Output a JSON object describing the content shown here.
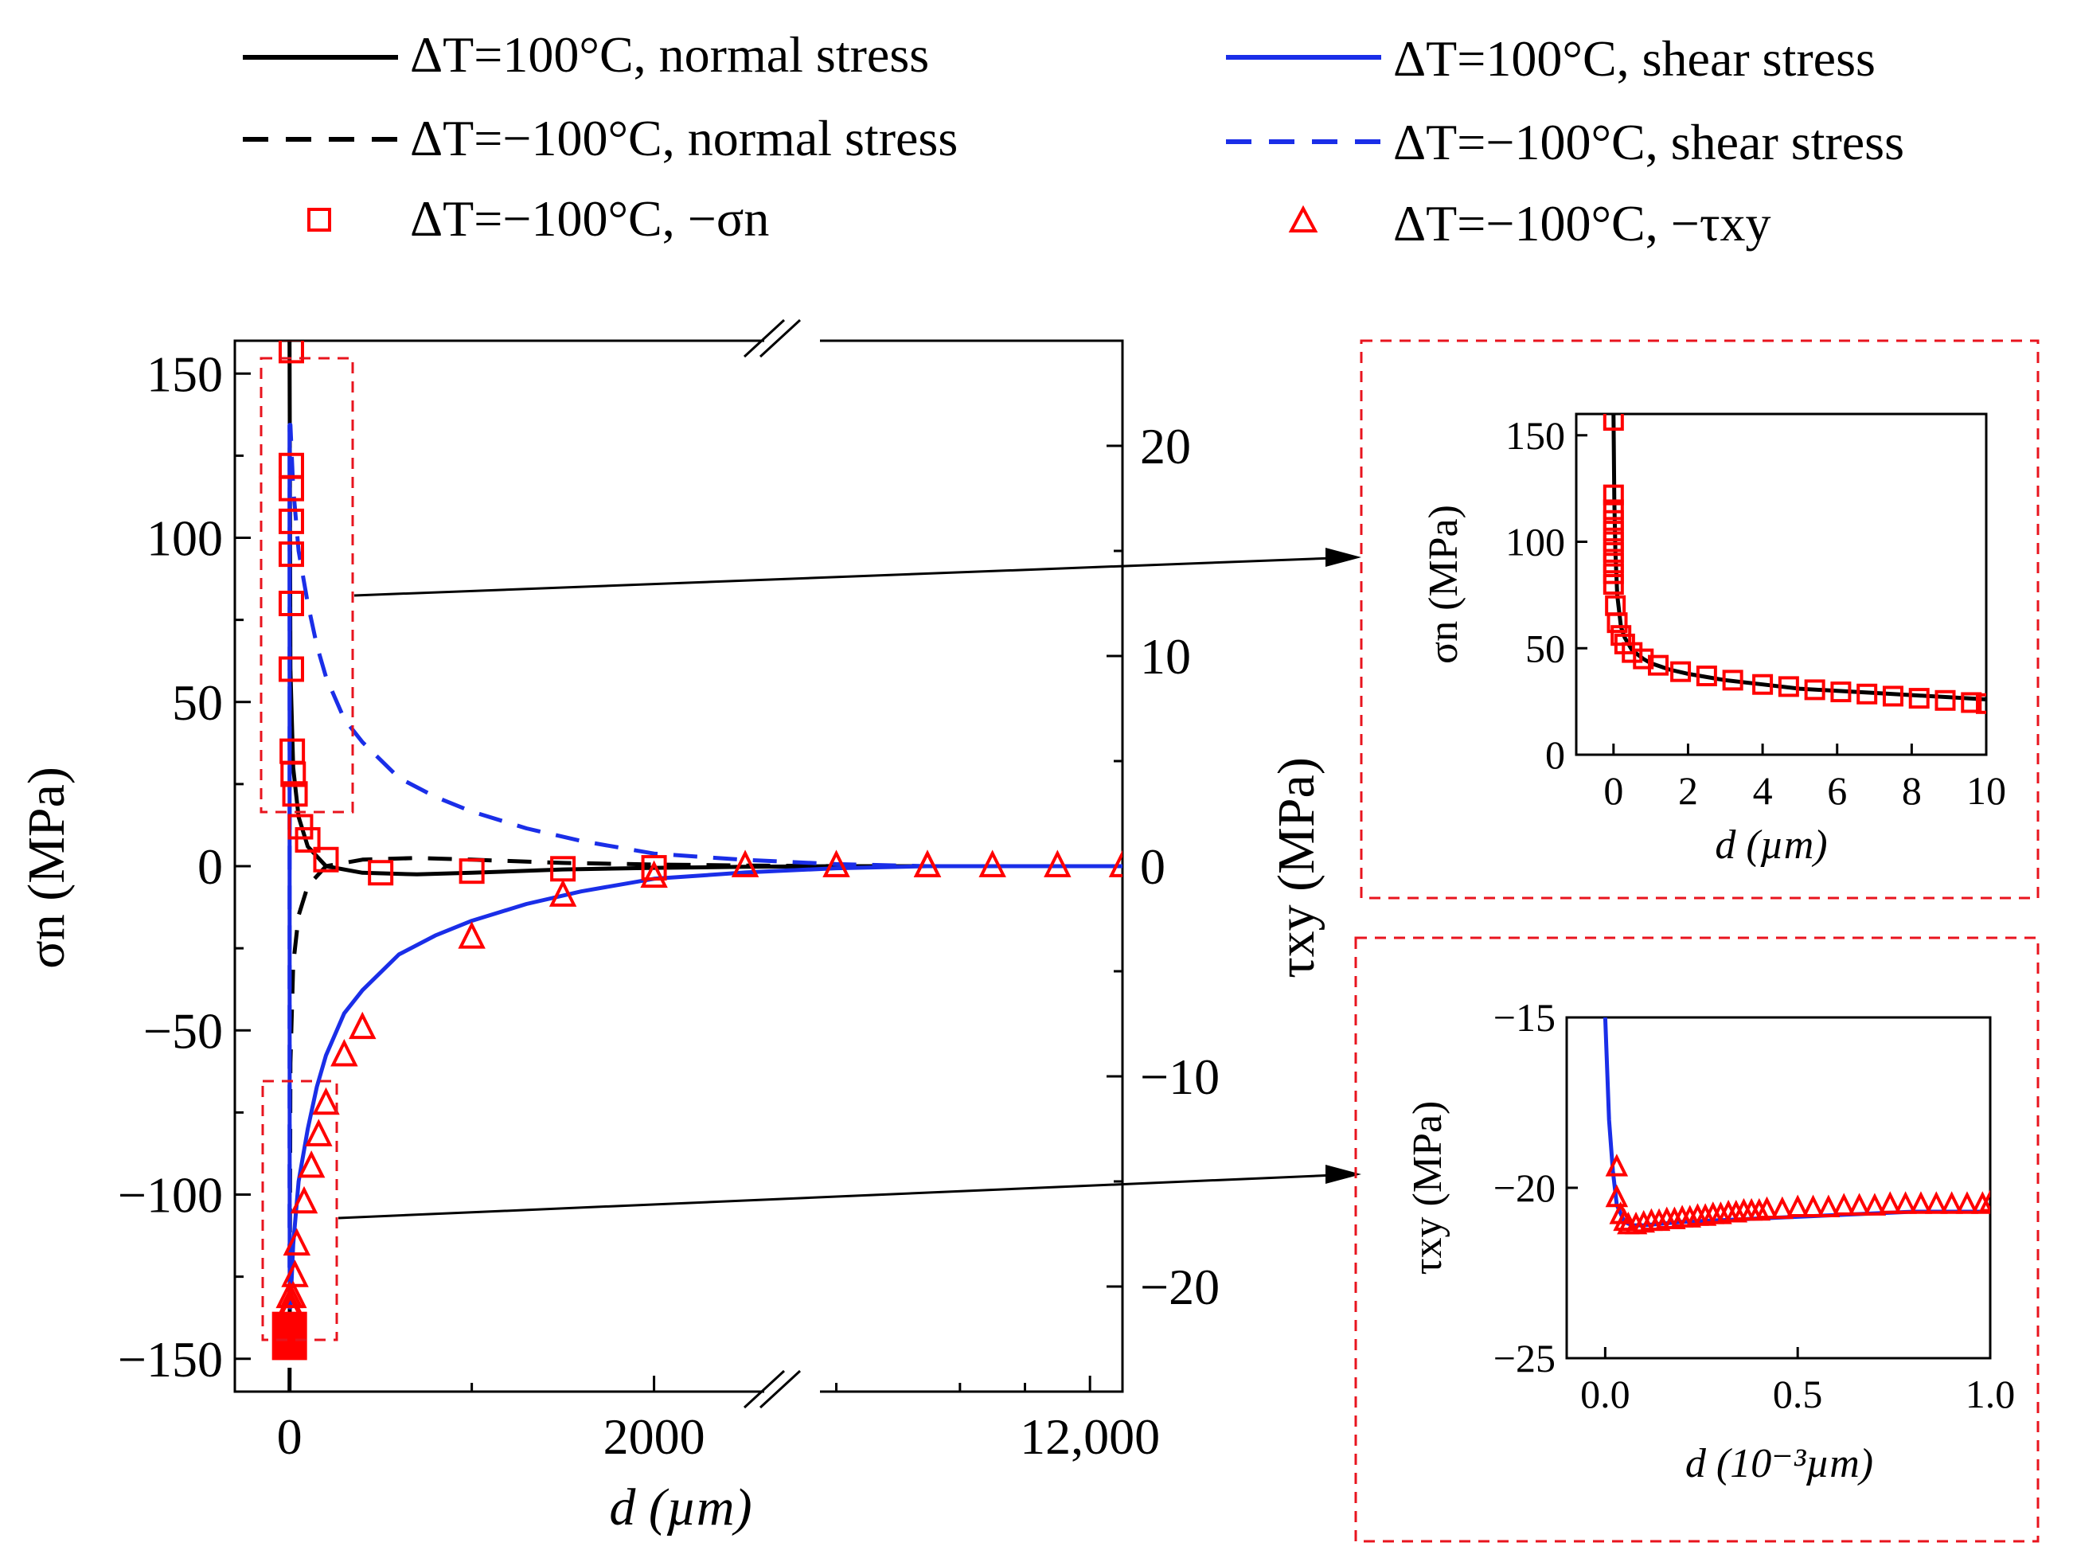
{
  "legend": {
    "solid_black": "ΔT=100°C, normal stress",
    "dash_black": "ΔT=−100°C, normal stress",
    "square_red": "ΔT=−100°C, −σn",
    "solid_blue": "ΔT=100°C, shear stress",
    "dash_blue": "ΔT=−100°C, shear stress",
    "triangle_red": "ΔT=−100°C, −τxy"
  },
  "colors": {
    "normal": "#000000",
    "shear": "#1a2ee8",
    "marker": "#ff0000",
    "zoom_box": "#e8141e"
  },
  "chart_data": [
    {
      "id": "main",
      "type": "line",
      "xlabel": "d (µm)",
      "ylabel_left": "σn (MPa)",
      "ylabel_right": "τxy (MPa)",
      "x_break": {
        "segment1": [
          -300,
          3500
        ],
        "segment2": [
          9500,
          12500
        ],
        "break_mark": "//"
      },
      "ylim_left": [
        -160,
        160
      ],
      "ylim_right": [
        -25,
        25
      ],
      "yticks_left": [
        "150",
        "100",
        "50",
        "0",
        "−50",
        "−100",
        "−150"
      ],
      "yticks_right": [
        "20",
        "10",
        "0",
        "−10",
        "−20"
      ],
      "xticks": [
        "0",
        "2000",
        "12,000"
      ],
      "series": [
        {
          "name": "ΔT=100°C, normal stress",
          "axis": "left",
          "style": "solid",
          "color": "#000000",
          "x": [
            0,
            5,
            20,
            50,
            100,
            200,
            400,
            700,
            1000,
            1500,
            2000,
            2500,
            3000,
            3500,
            9500,
            10500,
            11500,
            12500
          ],
          "y": [
            160,
            60,
            30,
            15,
            6,
            0,
            -2,
            -2.5,
            -2,
            -1,
            -0.5,
            -0.2,
            0,
            0,
            0,
            0,
            0,
            0
          ]
        },
        {
          "name": "ΔT=−100°C, normal stress",
          "axis": "left",
          "style": "dashed",
          "color": "#000000",
          "x": [
            0,
            5,
            20,
            50,
            100,
            200,
            400,
            700,
            1000,
            1500,
            2000,
            2500,
            3000,
            3500,
            9500,
            10500,
            11500,
            12500
          ],
          "y": [
            -160,
            -60,
            -30,
            -15,
            -6,
            0,
            2,
            2.5,
            2,
            1,
            0.5,
            0.2,
            0,
            0,
            0,
            0,
            0,
            0
          ]
        },
        {
          "name": "ΔT=100°C, shear stress",
          "axis": "right",
          "style": "solid",
          "color": "#1a2ee8",
          "x": [
            0,
            1,
            5,
            20,
            50,
            100,
            150,
            200,
            300,
            400,
            600,
            800,
            1000,
            1300,
            1600,
            2000,
            2500,
            3000,
            3500,
            9500,
            10500,
            11500,
            12500
          ],
          "y": [
            21,
            -21,
            -21,
            -18,
            -15,
            -12.5,
            -10.5,
            -9,
            -7,
            -5.9,
            -4.2,
            -3.3,
            -2.6,
            -1.8,
            -1.2,
            -0.6,
            -0.3,
            -0.1,
            0,
            0,
            0,
            0,
            0
          ]
        },
        {
          "name": "ΔT=−100°C, shear stress",
          "axis": "right",
          "style": "dashed",
          "color": "#1a2ee8",
          "x": [
            0,
            1,
            5,
            20,
            50,
            100,
            150,
            200,
            300,
            400,
            600,
            800,
            1000,
            1300,
            1600,
            2000,
            2500,
            3000,
            3500,
            9500,
            10500,
            11500,
            12500
          ],
          "y": [
            -21,
            21,
            21,
            18,
            15,
            12.5,
            10.5,
            9,
            7,
            5.9,
            4.2,
            3.3,
            2.6,
            1.8,
            1.2,
            0.6,
            0.3,
            0.1,
            0,
            0,
            0,
            0,
            0
          ]
        },
        {
          "name": "ΔT=−100°C, −σn",
          "axis": "left",
          "marker": "square",
          "color": "#ff0000",
          "x": [
            10,
            10,
            10,
            10,
            10,
            10,
            10,
            15,
            20,
            30,
            60,
            100,
            200,
            500,
            1000,
            1500,
            2000
          ],
          "y": [
            157,
            122,
            115,
            105,
            95,
            80,
            60,
            35,
            28,
            22,
            12,
            8,
            2,
            -2,
            -1.5,
            -0.8,
            -0.5
          ]
        },
        {
          "name": "ΔT=−100°C, −τxy",
          "axis": "right",
          "marker": "triangle",
          "color": "#ff0000",
          "x": [
            0,
            0,
            10,
            20,
            30,
            40,
            80,
            120,
            160,
            200,
            300,
            400,
            1000,
            1500,
            2000,
            2500,
            3000,
            3500,
            9500,
            10500,
            11500,
            12500
          ],
          "y": [
            -20.5,
            -21,
            -21,
            -20.5,
            -19.5,
            -18,
            -16,
            -14.3,
            -12.8,
            -11.3,
            -9,
            -7.7,
            -3.4,
            -1.4,
            -0.5,
            0,
            0,
            0,
            0,
            0,
            0,
            0
          ]
        }
      ]
    },
    {
      "id": "inset_sigma",
      "type": "line",
      "xlabel": "d (µm)",
      "ylabel": "σn (MPa)",
      "xlim": [
        -1,
        10
      ],
      "ylim": [
        0,
        160
      ],
      "xticks": [
        "0",
        "2",
        "4",
        "6",
        "8",
        "10"
      ],
      "yticks": [
        "0",
        "50",
        "100",
        "150"
      ],
      "series": [
        {
          "name": "ΔT=100°C, normal stress",
          "style": "solid",
          "color": "#000000",
          "x": [
            0,
            0.02,
            0.05,
            0.1,
            0.2,
            0.3,
            0.5,
            0.8,
            1,
            1.5,
            2,
            3,
            4,
            5,
            6,
            7,
            8,
            9,
            10
          ],
          "y": [
            160,
            120,
            95,
            75,
            60,
            55,
            49,
            45,
            43,
            40,
            38,
            35,
            33,
            31,
            30,
            29,
            28,
            27,
            26
          ]
        },
        {
          "name": "ΔT=−100°C, −σn",
          "marker": "square",
          "color": "#ff0000",
          "x": [
            0,
            0,
            0,
            0,
            0,
            0,
            0,
            0,
            0,
            0,
            0.05,
            0.1,
            0.2,
            0.3,
            0.5,
            0.8,
            1.2,
            1.8,
            2.5,
            3.2,
            4,
            4.7,
            5.4,
            6.1,
            6.8,
            7.5,
            8.2,
            8.9,
            9.6,
            10
          ],
          "y": [
            157,
            122,
            115,
            110,
            105,
            100,
            95,
            90,
            85,
            80,
            70,
            62,
            56,
            52,
            48,
            45,
            42,
            39,
            37,
            35,
            33,
            32,
            30.5,
            29.5,
            28.5,
            27.5,
            26.5,
            25.5,
            24.5,
            24
          ]
        }
      ]
    },
    {
      "id": "inset_tau",
      "type": "line",
      "xlabel": "d (10⁻³µm)",
      "ylabel": "τxy (MPa)",
      "xlim": [
        -0.1,
        1.0
      ],
      "ylim": [
        -25,
        -15
      ],
      "xticks": [
        "0.0",
        "0.5",
        "1.0"
      ],
      "yticks": [
        "−15",
        "−20",
        "−25"
      ],
      "series": [
        {
          "name": "ΔT=100°C, shear stress",
          "style": "solid",
          "color": "#1a2ee8",
          "x": [
            0.0,
            0.005,
            0.01,
            0.02,
            0.03,
            0.05,
            0.07,
            0.1,
            0.2,
            0.3,
            0.4,
            0.5,
            0.6,
            0.7,
            0.8,
            0.9,
            1.0
          ],
          "y": [
            -15,
            -16.5,
            -18,
            -19.5,
            -20.5,
            -21,
            -21.1,
            -21.1,
            -21,
            -20.95,
            -20.9,
            -20.85,
            -20.8,
            -20.75,
            -20.7,
            -20.7,
            -20.7
          ]
        },
        {
          "name": "ΔT=−100°C, −τxy",
          "marker": "triangle",
          "color": "#ff0000",
          "x": [
            0.03,
            0.03,
            0.04,
            0.05,
            0.06,
            0.08,
            0.1,
            0.12,
            0.14,
            0.16,
            0.18,
            0.2,
            0.22,
            0.24,
            0.26,
            0.28,
            0.3,
            0.32,
            0.34,
            0.36,
            0.38,
            0.4,
            0.42,
            0.46,
            0.5,
            0.54,
            0.58,
            0.62,
            0.66,
            0.7,
            0.74,
            0.78,
            0.82,
            0.86,
            0.9,
            0.94,
            0.98,
            1.0
          ],
          "y": [
            -19.4,
            -20.3,
            -20.8,
            -21.0,
            -21.1,
            -21.1,
            -21.05,
            -21.0,
            -21.0,
            -20.95,
            -20.95,
            -20.9,
            -20.9,
            -20.85,
            -20.85,
            -20.8,
            -20.8,
            -20.75,
            -20.75,
            -20.7,
            -20.7,
            -20.7,
            -20.65,
            -20.65,
            -20.6,
            -20.6,
            -20.6,
            -20.55,
            -20.55,
            -20.55,
            -20.5,
            -20.5,
            -20.5,
            -20.5,
            -20.5,
            -20.5,
            -20.5,
            -20.45
          ]
        }
      ]
    }
  ]
}
